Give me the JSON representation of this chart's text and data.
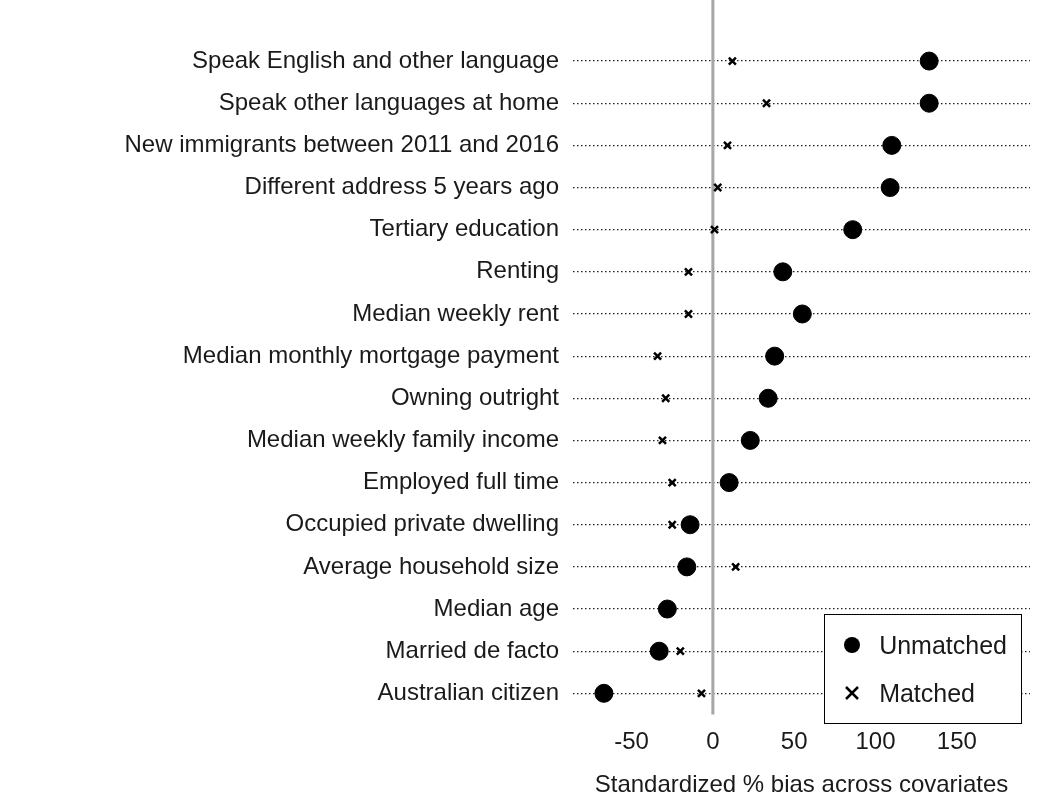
{
  "chart_data": {
    "type": "scatter",
    "orientation": "horizontal",
    "xlabel": "Standardized % bias across covariates",
    "categories": [
      "Speak English and other language",
      "Speak other languages at home",
      "New immigrants between 2011 and 2016",
      "Different address 5 years ago",
      "Tertiary education",
      "Renting",
      "Median weekly rent",
      "Median monthly mortgage payment",
      "Owning outright",
      "Median weekly family income",
      "Employed full time",
      "Occupied private dwelling",
      "Average household size",
      "Median age",
      "Married de facto",
      "Australian citizen"
    ],
    "series": [
      {
        "name": "Unmatched",
        "color": "#000000",
        "marker": "circle",
        "values": [
          133,
          133,
          110,
          109,
          86,
          43,
          55,
          38,
          34,
          23,
          10,
          -14,
          -16,
          -28,
          -33,
          -67
        ]
      },
      {
        "name": "Matched",
        "color": "#000000",
        "marker": "cross",
        "values": [
          12,
          33,
          9,
          3,
          1,
          -15,
          -15,
          -34,
          -29,
          -31,
          -25,
          -25,
          14,
          null,
          -20,
          -7
        ]
      }
    ],
    "xlim": [
      -86,
      195
    ],
    "xticks": [
      -50,
      0,
      50,
      100,
      150
    ],
    "ref_lines": [
      {
        "axis": "x",
        "value": 0,
        "color": "#a6a6a6"
      }
    ],
    "grid": "y",
    "line_style": "dotted",
    "legend": "bottom right"
  }
}
